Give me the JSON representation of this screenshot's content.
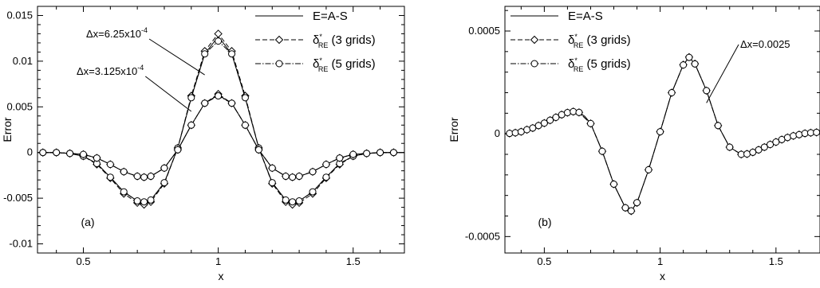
{
  "chart_data": [
    {
      "panel": "(a)",
      "type": "line",
      "xlabel": "x",
      "ylabel": "Error",
      "xlim": [
        0.33,
        1.69
      ],
      "ylim": [
        -0.011,
        0.016
      ],
      "xticks": [
        0.5,
        1,
        1.5
      ],
      "xtick_labels": [
        "0.5",
        "1",
        "1.5"
      ],
      "yticks": [
        -0.01,
        -0.005,
        0,
        0.005,
        0.01,
        0.015
      ],
      "ytick_labels": [
        "-0.01",
        "-0.005",
        "0",
        "0.005",
        "0.01",
        "0.015"
      ],
      "legend": {
        "position": "top-right",
        "entries": [
          {
            "label": "E=A-S",
            "style": "solid",
            "marker": "none"
          },
          {
            "label": "δ",
            "sup": "*",
            "sub": "RE",
            "suffix": " (3 grids)",
            "style": "dashed",
            "marker": "diamond"
          },
          {
            "label": "δ",
            "sup": "*",
            "sub": "RE",
            "suffix": " (5 grids)",
            "style": "dashdot",
            "marker": "circle"
          }
        ]
      },
      "annotations": [
        {
          "base": "Δx=6.25x10",
          "exp": "-4",
          "points_to": {
            "x": 0.95,
            "y": 0.0085
          }
        },
        {
          "base": "Δx=3.125x10",
          "exp": "-4",
          "points_to": {
            "x": 0.9,
            "y": 0.0045
          }
        }
      ],
      "series": [
        {
          "group": "Δx=6.25x10^-4",
          "style": "solid",
          "marker": "none",
          "x": [
            0.33,
            0.35,
            0.4,
            0.45,
            0.5,
            0.55,
            0.6,
            0.65,
            0.7,
            0.725,
            0.75,
            0.8,
            0.85,
            0.9,
            0.95,
            1.0,
            1.05,
            1.1,
            1.15,
            1.2,
            1.25,
            1.275,
            1.3,
            1.35,
            1.4,
            1.45,
            1.5,
            1.55,
            1.6,
            1.65,
            1.69
          ],
          "y": [
            0,
            0,
            0,
            -0.0001,
            -0.0004,
            -0.0012,
            -0.0027,
            -0.0043,
            -0.0053,
            -0.0054,
            -0.0052,
            -0.0033,
            0.0005,
            0.006,
            0.0108,
            0.0127,
            0.0108,
            0.006,
            0.0005,
            -0.0033,
            -0.0052,
            -0.0054,
            -0.0053,
            -0.0043,
            -0.0027,
            -0.0012,
            -0.0004,
            -0.0001,
            0,
            0,
            0
          ]
        },
        {
          "group": "Δx=6.25x10^-4",
          "style": "dashed",
          "marker": "diamond",
          "x": [
            0.35,
            0.4,
            0.45,
            0.5,
            0.55,
            0.6,
            0.65,
            0.7,
            0.725,
            0.75,
            0.8,
            0.85,
            0.9,
            0.95,
            1.0,
            1.05,
            1.1,
            1.15,
            1.2,
            1.25,
            1.275,
            1.3,
            1.35,
            1.4,
            1.45,
            1.5,
            1.55,
            1.6,
            1.65
          ],
          "y": [
            0,
            0,
            -0.0001,
            -0.0004,
            -0.0013,
            -0.0028,
            -0.0045,
            -0.0055,
            -0.0057,
            -0.0054,
            -0.0034,
            0.0005,
            0.0062,
            0.0111,
            0.013,
            0.0111,
            0.0062,
            0.0005,
            -0.0034,
            -0.0054,
            -0.0057,
            -0.0055,
            -0.0045,
            -0.0028,
            -0.0013,
            -0.0004,
            -0.0001,
            0,
            0
          ]
        },
        {
          "group": "Δx=6.25x10^-4",
          "style": "dashdot",
          "marker": "circle",
          "x": [
            0.35,
            0.4,
            0.45,
            0.5,
            0.55,
            0.6,
            0.65,
            0.7,
            0.725,
            0.75,
            0.8,
            0.85,
            0.9,
            0.95,
            1.0,
            1.05,
            1.1,
            1.15,
            1.2,
            1.25,
            1.275,
            1.3,
            1.35,
            1.4,
            1.45,
            1.5,
            1.55,
            1.6,
            1.65
          ],
          "y": [
            0,
            0,
            -0.0001,
            -0.0004,
            -0.0012,
            -0.0027,
            -0.0043,
            -0.0053,
            -0.0054,
            -0.0052,
            -0.0033,
            0.0005,
            0.006,
            0.0108,
            0.0122,
            0.0108,
            0.006,
            0.0005,
            -0.0033,
            -0.0052,
            -0.0054,
            -0.0053,
            -0.0043,
            -0.0027,
            -0.0012,
            -0.0004,
            -0.0001,
            0,
            0
          ]
        },
        {
          "group": "Δx=3.125x10^-4",
          "style": "solid",
          "marker": "none",
          "x": [
            0.33,
            0.35,
            0.4,
            0.45,
            0.5,
            0.55,
            0.6,
            0.65,
            0.7,
            0.725,
            0.75,
            0.8,
            0.85,
            0.9,
            0.95,
            1.0,
            1.05,
            1.1,
            1.15,
            1.2,
            1.25,
            1.275,
            1.3,
            1.35,
            1.4,
            1.45,
            1.5,
            1.55,
            1.6,
            1.65,
            1.69
          ],
          "y": [
            0,
            0,
            0,
            -0.0001,
            -0.0002,
            -0.0006,
            -0.0013,
            -0.0021,
            -0.0026,
            -0.0027,
            -0.0026,
            -0.0017,
            0.0003,
            0.003,
            0.0054,
            0.0063,
            0.0054,
            0.003,
            0.0003,
            -0.0017,
            -0.0026,
            -0.0027,
            -0.0026,
            -0.0021,
            -0.0013,
            -0.0006,
            -0.0002,
            -0.0001,
            0,
            0,
            0
          ]
        },
        {
          "group": "Δx=3.125x10^-4",
          "style": "dashed",
          "marker": "diamond",
          "x": [
            0.35,
            0.4,
            0.45,
            0.5,
            0.55,
            0.6,
            0.65,
            0.7,
            0.725,
            0.75,
            0.8,
            0.85,
            0.9,
            0.95,
            1.0,
            1.05,
            1.1,
            1.15,
            1.2,
            1.25,
            1.275,
            1.3,
            1.35,
            1.4,
            1.45,
            1.5,
            1.55,
            1.6,
            1.65
          ],
          "y": [
            0,
            0,
            -0.0001,
            -0.0002,
            -0.0006,
            -0.0013,
            -0.0021,
            -0.0026,
            -0.0027,
            -0.0026,
            -0.0017,
            0.0003,
            0.003,
            0.0054,
            0.0064,
            0.0054,
            0.003,
            0.0003,
            -0.0017,
            -0.0026,
            -0.0027,
            -0.0026,
            -0.0021,
            -0.0013,
            -0.0006,
            -0.0002,
            -0.0001,
            0,
            0
          ]
        },
        {
          "group": "Δx=3.125x10^-4",
          "style": "dashdot",
          "marker": "circle",
          "x": [
            0.35,
            0.4,
            0.45,
            0.5,
            0.55,
            0.6,
            0.65,
            0.7,
            0.725,
            0.75,
            0.8,
            0.85,
            0.9,
            0.95,
            1.0,
            1.05,
            1.1,
            1.15,
            1.2,
            1.25,
            1.275,
            1.3,
            1.35,
            1.4,
            1.45,
            1.5,
            1.55,
            1.6,
            1.65
          ],
          "y": [
            0,
            0,
            -0.0001,
            -0.0002,
            -0.0006,
            -0.0013,
            -0.0021,
            -0.0026,
            -0.0027,
            -0.0026,
            -0.0017,
            0.0003,
            0.003,
            0.0054,
            0.0062,
            0.0054,
            0.003,
            0.0003,
            -0.0017,
            -0.0026,
            -0.0027,
            -0.0026,
            -0.0021,
            -0.0013,
            -0.0006,
            -0.0002,
            -0.0001,
            0,
            0
          ]
        }
      ]
    },
    {
      "panel": "(b)",
      "type": "line",
      "xlabel": "x",
      "ylabel": "Error",
      "xlim": [
        0.33,
        1.69
      ],
      "ylim": [
        -0.00058,
        0.00062
      ],
      "xticks": [
        0.5,
        1,
        1.5
      ],
      "xtick_labels": [
        "0.5",
        "1",
        "1.5"
      ],
      "yticks": [
        -0.0005,
        0,
        0.0005
      ],
      "ytick_labels": [
        "-0.0005",
        "0",
        "0.0005"
      ],
      "legend": {
        "position": "top-left",
        "entries": [
          {
            "label": "E=A-S",
            "style": "solid",
            "marker": "none"
          },
          {
            "label": "δ",
            "sup": "*",
            "sub": "RE",
            "suffix": " (3 grids)",
            "style": "dashed",
            "marker": "diamond"
          },
          {
            "label": "δ",
            "sup": "*",
            "sub": "RE",
            "suffix": " (5 grids)",
            "style": "dashdot",
            "marker": "circle"
          }
        ]
      },
      "annotations": [
        {
          "base": "Δx=0.0025",
          "exp": "",
          "points_to": {
            "x": 1.2,
            "y": 0.00015
          }
        }
      ],
      "series": [
        {
          "group": "Δx=0.0025",
          "style": "solid",
          "marker": "none",
          "x": [
            0.33,
            0.35,
            0.375,
            0.4,
            0.425,
            0.45,
            0.475,
            0.5,
            0.525,
            0.55,
            0.575,
            0.6,
            0.625,
            0.65,
            0.675,
            0.7,
            0.75,
            0.8,
            0.85,
            0.875,
            0.9,
            0.95,
            1.0,
            1.05,
            1.1,
            1.125,
            1.15,
            1.2,
            1.25,
            1.3,
            1.35,
            1.375,
            1.4,
            1.425,
            1.45,
            1.475,
            1.5,
            1.525,
            1.55,
            1.575,
            1.6,
            1.625,
            1.65,
            1.675,
            1.69
          ],
          "y": [
            0,
            2e-06,
            5e-06,
            1e-05,
            2e-05,
            2.8e-05,
            4e-05,
            5.2e-05,
            6.6e-05,
            8e-05,
            9.3e-05,
            0.000103,
            0.000108,
            0.000104,
            8.5e-05,
            5e-05,
            -8.5e-05,
            -0.000245,
            -0.00036,
            -0.000375,
            -0.000335,
            -0.000175,
            1e-05,
            0.0002,
            0.000335,
            0.000372,
            0.00034,
            0.00021,
            4e-05,
            -6.5e-05,
            -0.0001,
            -9.8e-05,
            -9e-05,
            -7.8e-05,
            -6.5e-05,
            -5.2e-05,
            -4e-05,
            -2.8e-05,
            -1.8e-05,
            -1e-05,
            -4e-06,
            2e-06,
            5e-06,
            7e-06,
            8e-06
          ]
        },
        {
          "group": "Δx=0.0025",
          "style": "dashed",
          "marker": "diamond",
          "x": [
            0.35,
            0.375,
            0.4,
            0.425,
            0.45,
            0.475,
            0.5,
            0.525,
            0.55,
            0.575,
            0.6,
            0.625,
            0.65,
            0.7,
            0.75,
            0.8,
            0.85,
            0.875,
            0.9,
            0.95,
            1.0,
            1.05,
            1.1,
            1.125,
            1.15,
            1.2,
            1.25,
            1.3,
            1.35,
            1.375,
            1.4,
            1.425,
            1.45,
            1.475,
            1.5,
            1.525,
            1.55,
            1.575,
            1.6,
            1.625,
            1.65,
            1.675
          ],
          "y": [
            2e-06,
            5e-06,
            1e-05,
            2e-05,
            2.8e-05,
            4e-05,
            5.2e-05,
            6.6e-05,
            8e-05,
            9.3e-05,
            0.000103,
            0.000108,
            0.000104,
            5e-05,
            -8.5e-05,
            -0.000245,
            -0.00036,
            -0.000376,
            -0.000336,
            -0.000175,
            1e-05,
            0.0002,
            0.000336,
            0.000373,
            0.000341,
            0.00021,
            4e-05,
            -6.5e-05,
            -0.0001,
            -9.8e-05,
            -9e-05,
            -7.8e-05,
            -6.5e-05,
            -5.2e-05,
            -4e-05,
            -2.8e-05,
            -1.8e-05,
            -1e-05,
            -4e-06,
            2e-06,
            5e-06,
            7e-06
          ]
        },
        {
          "group": "Δx=0.0025",
          "style": "dashdot",
          "marker": "circle",
          "x": [
            0.35,
            0.375,
            0.4,
            0.425,
            0.45,
            0.475,
            0.5,
            0.525,
            0.55,
            0.575,
            0.6,
            0.625,
            0.65,
            0.7,
            0.75,
            0.8,
            0.85,
            0.875,
            0.9,
            0.95,
            1.0,
            1.05,
            1.1,
            1.125,
            1.15,
            1.2,
            1.25,
            1.3,
            1.35,
            1.375,
            1.4,
            1.425,
            1.45,
            1.475,
            1.5,
            1.525,
            1.55,
            1.575,
            1.6,
            1.625,
            1.65,
            1.675
          ],
          "y": [
            2e-06,
            5e-06,
            1e-05,
            2e-05,
            2.8e-05,
            4e-05,
            5.2e-05,
            6.6e-05,
            8e-05,
            9.3e-05,
            0.000103,
            0.000108,
            0.000104,
            5e-05,
            -8.5e-05,
            -0.000245,
            -0.00036,
            -0.000375,
            -0.000335,
            -0.000175,
            1e-05,
            0.0002,
            0.000335,
            0.000372,
            0.00034,
            0.00021,
            4e-05,
            -6.5e-05,
            -0.0001,
            -9.8e-05,
            -9e-05,
            -7.8e-05,
            -6.5e-05,
            -5.2e-05,
            -4e-05,
            -2.8e-05,
            -1.8e-05,
            -1e-05,
            -4e-06,
            2e-06,
            5e-06,
            7e-06
          ]
        }
      ]
    }
  ]
}
